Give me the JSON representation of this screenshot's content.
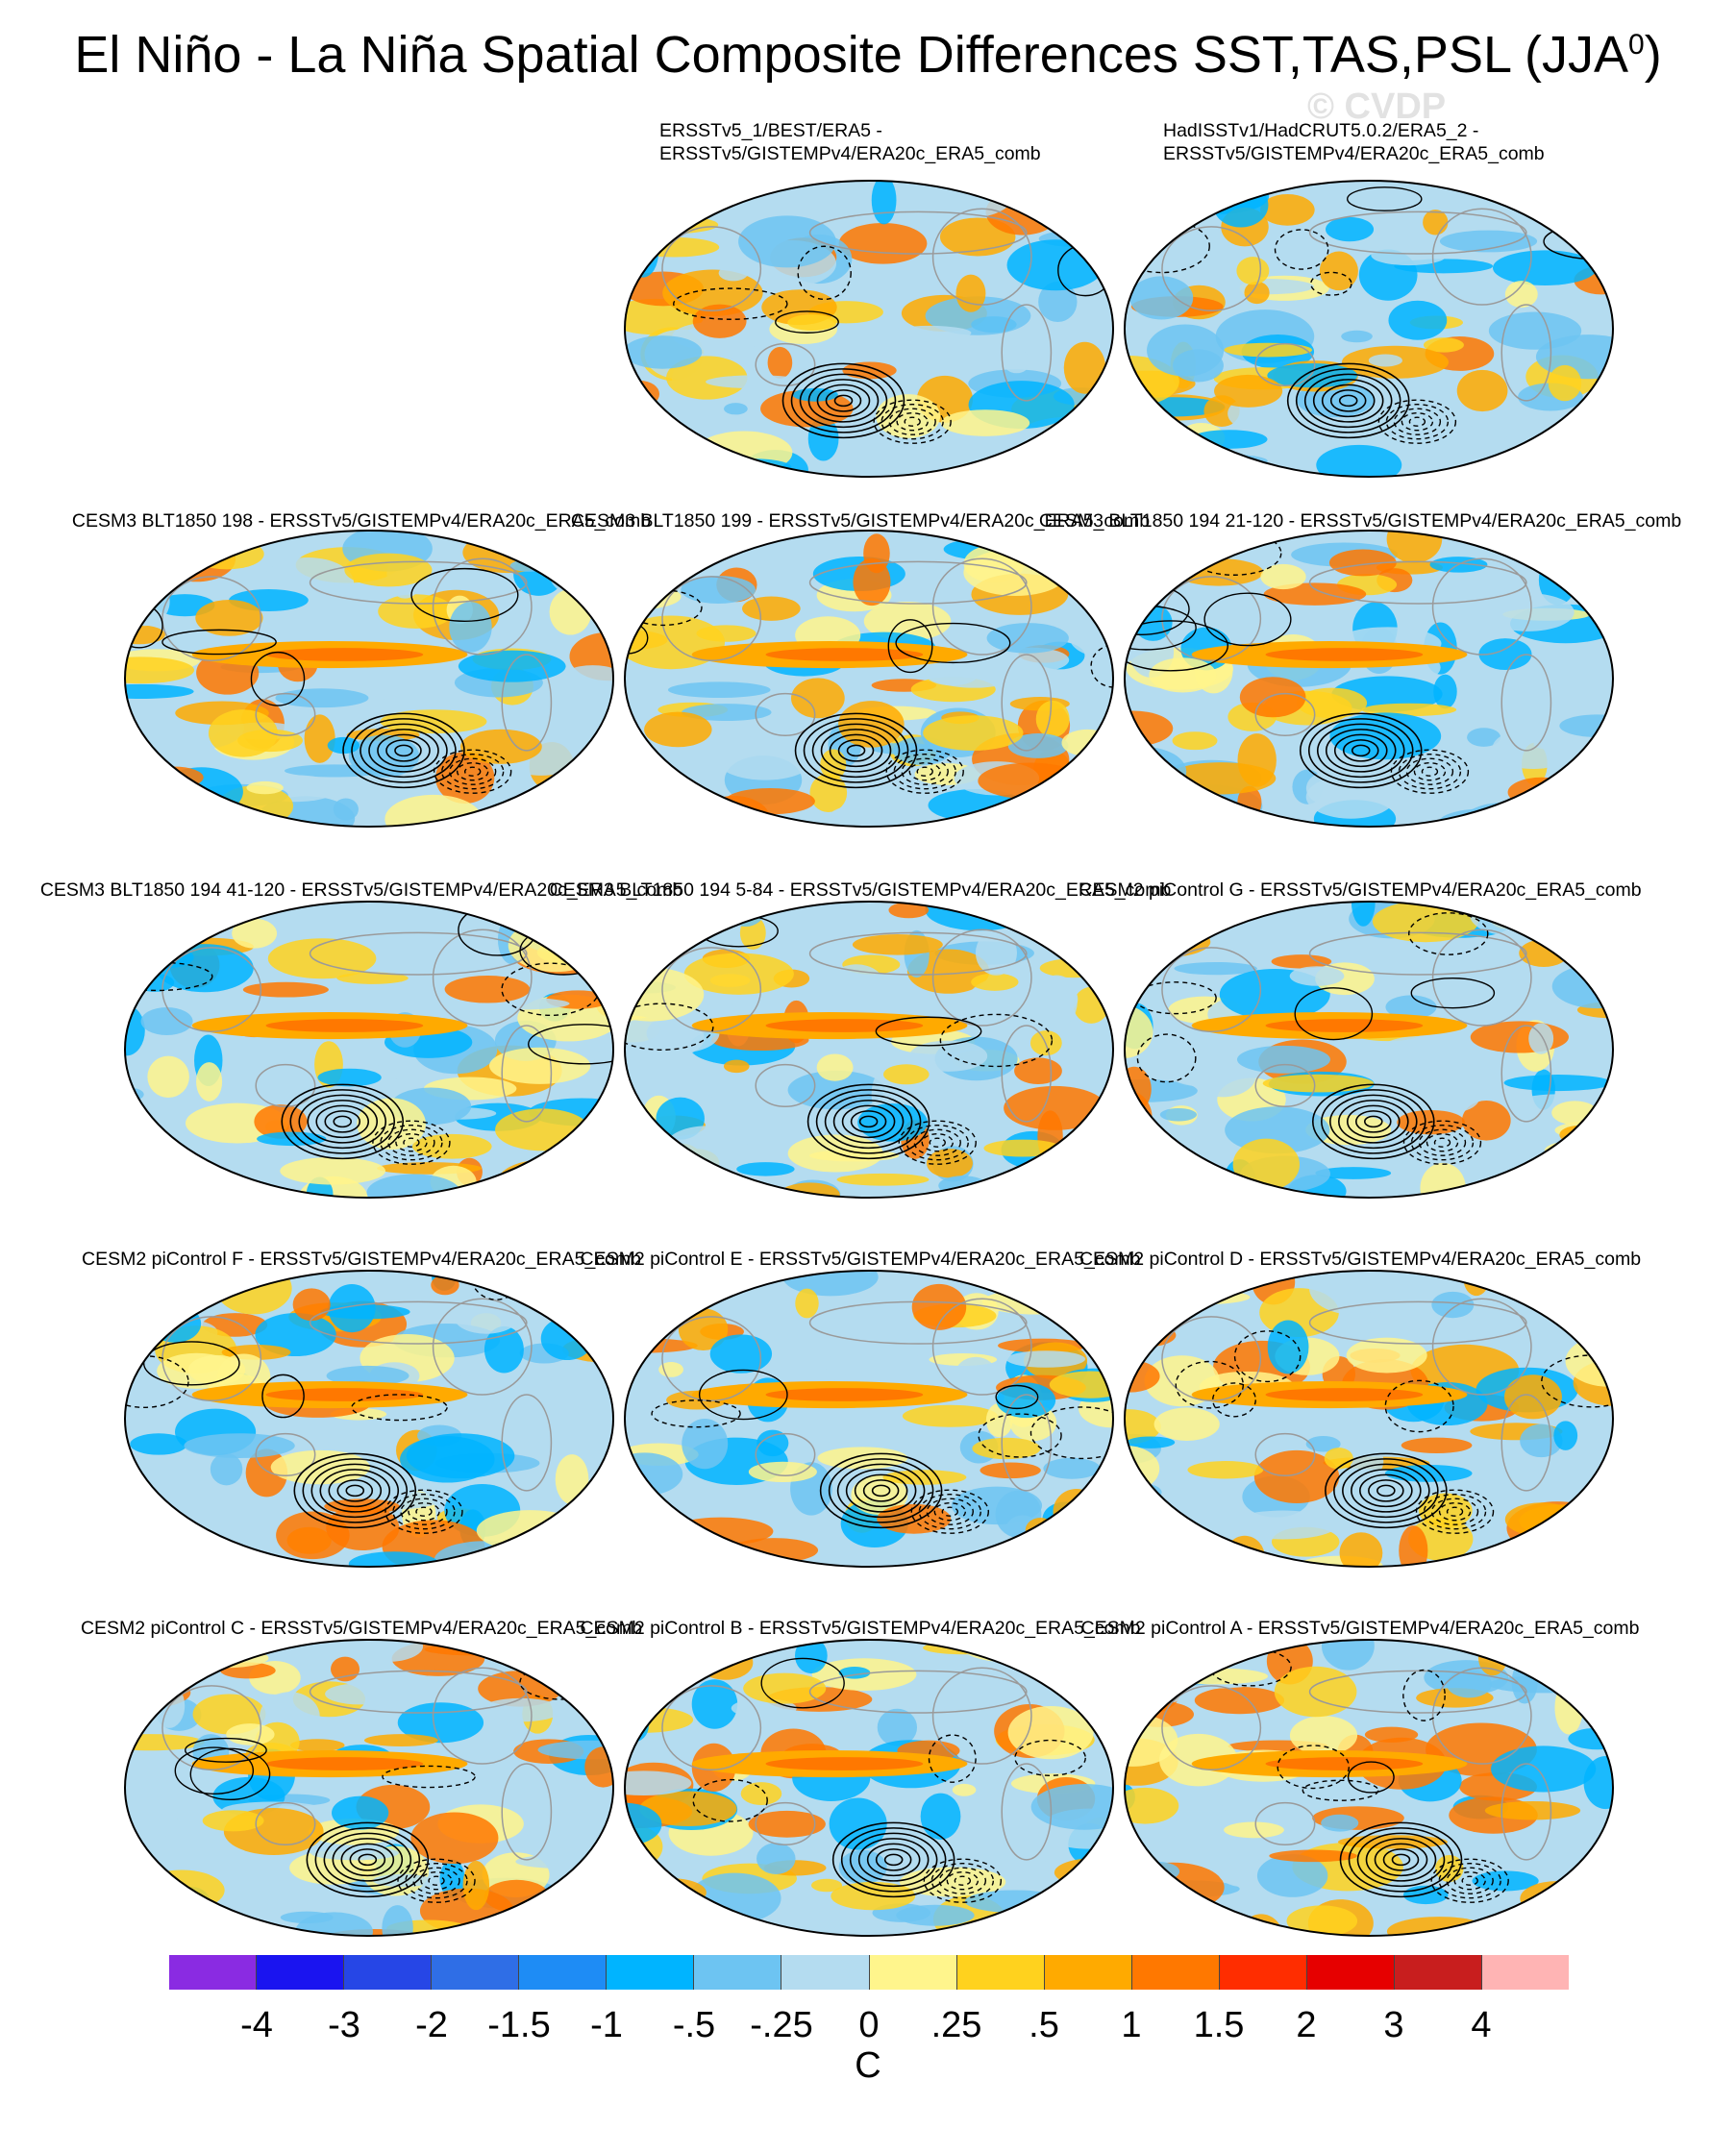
{
  "title_main": "El Niño - La Niña Spatial Composite Differences SST,TAS,PSL (JJA",
  "title_sup": "0",
  "title_close": ")",
  "watermark": "© CVDP",
  "panels": [
    {
      "title": [
        "ERSSTv5_1/BEST/ERA5 -",
        "ERSSTv5/GISTEMPv4/ERA20c_ERA5_comb"
      ],
      "seed": 11
    },
    {
      "title": [
        "HadISSTv1/HadCRUT5.0.2/ERA5_2 -",
        "ERSSTv5/GISTEMPv4/ERA20c_ERA5_comb"
      ],
      "seed": 23
    },
    {
      "title": [
        "CESM3 BLT1850 198 - ERSSTv5/GISTEMPv4/ERA20c_ERA5_comb"
      ],
      "seed": 37
    },
    {
      "title": [
        "CESM3 BLT1850 199 - ERSSTv5/GISTEMPv4/ERA20c_ERA5_comb"
      ],
      "seed": 41
    },
    {
      "title": [
        "CESM3 BLT1850 194 21-120 - ERSSTv5/GISTEMPv4/ERA20c_ERA5_comb"
      ],
      "seed": 53
    },
    {
      "title": [
        "CESM3 BLT1850 194 41-120 - ERSSTv5/GISTEMPv4/ERA20c_ERA5_comb"
      ],
      "seed": 67
    },
    {
      "title": [
        "CESM3 BLT1850 194 5-84 - ERSSTv5/GISTEMPv4/ERA20c_ERA5_comb"
      ],
      "seed": 71
    },
    {
      "title": [
        "CESM2 piControl G - ERSSTv5/GISTEMPv4/ERA20c_ERA5_comb"
      ],
      "seed": 83
    },
    {
      "title": [
        "CESM2 piControl F - ERSSTv5/GISTEMPv4/ERA20c_ERA5_comb"
      ],
      "seed": 97
    },
    {
      "title": [
        "CESM2 piControl E - ERSSTv5/GISTEMPv4/ERA20c_ERA5_comb"
      ],
      "seed": 101
    },
    {
      "title": [
        "CESM2 piControl D - ERSSTv5/GISTEMPv4/ERA20c_ERA5_comb"
      ],
      "seed": 113
    },
    {
      "title": [
        "CESM2 piControl C - ERSSTv5/GISTEMPv4/ERA20c_ERA5_comb"
      ],
      "seed": 127
    },
    {
      "title": [
        "CESM2 piControl B - ERSSTv5/GISTEMPv4/ERA20c_ERA5_comb"
      ],
      "seed": 131
    },
    {
      "title": [
        "CESM2 piControl A - ERSSTv5/GISTEMPv4/ERA20c_ERA5_comb"
      ],
      "seed": 149
    }
  ],
  "colorbar": {
    "colors": [
      "#8a2be2",
      "#1a14f0",
      "#2646e6",
      "#2f6ee6",
      "#1e8cf5",
      "#00b4ff",
      "#6dc4f2",
      "#b4dcf0",
      "#fff58c",
      "#ffd21e",
      "#ffaa00",
      "#ff7800",
      "#ff2d00",
      "#e60000",
      "#c81e1e",
      "#ffb4b4"
    ],
    "labels": [
      "-4",
      "-3",
      "-2",
      "-1.5",
      "-1",
      "-.5",
      "-.25",
      "0",
      ".25",
      ".5",
      "1",
      "1.5",
      "2",
      "3",
      "4"
    ],
    "unit": "C"
  }
}
